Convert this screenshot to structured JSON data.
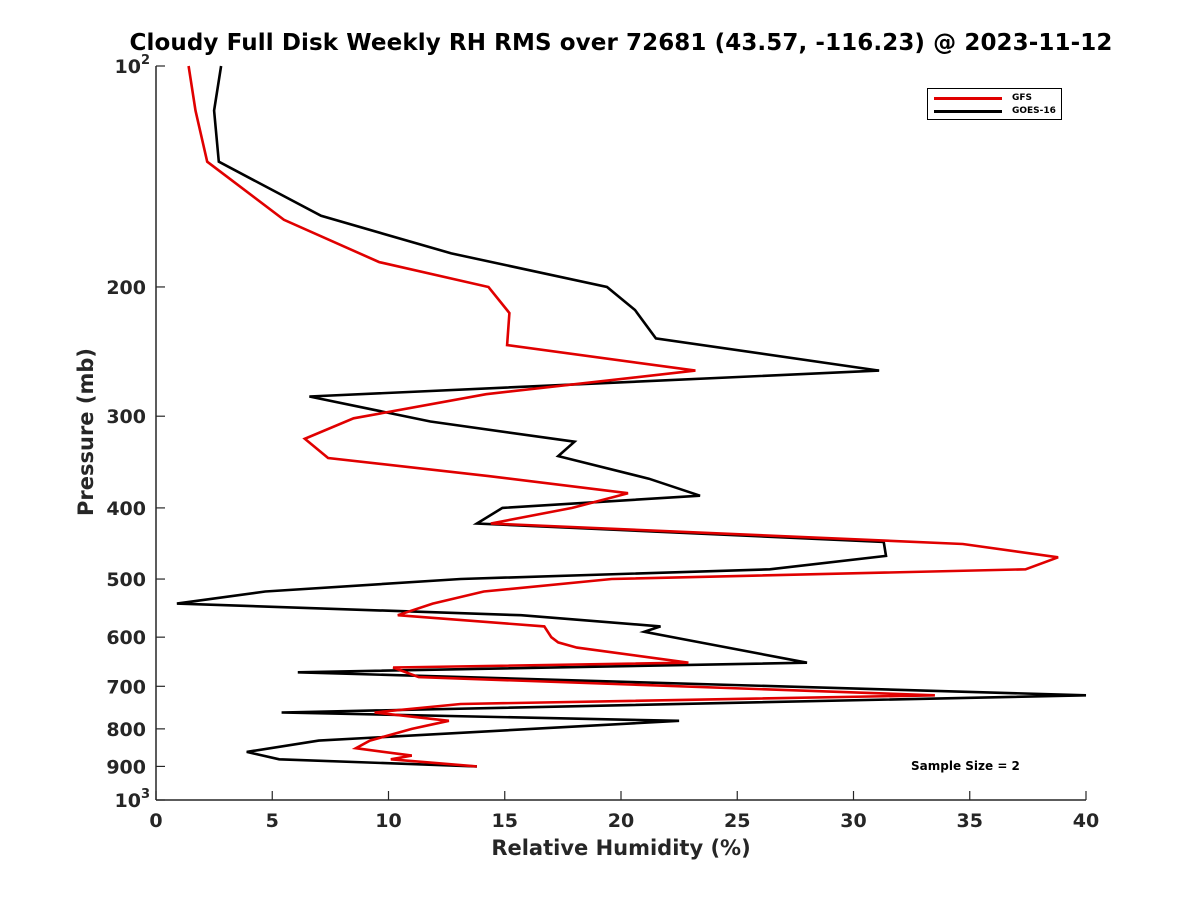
{
  "chart_data": {
    "type": "line",
    "title": "Cloudy Full Disk Weekly RH RMS over 72681 (43.57, -116.23) @ 2023-11-12",
    "xlabel": "Relative Humidity (%)",
    "ylabel": "Pressure (mb)",
    "xlim": [
      0,
      40
    ],
    "ylim": [
      100,
      1000
    ],
    "y_scale": "log",
    "y_reversed": true,
    "x_ticks": [
      {
        "value": 0,
        "label": "0"
      },
      {
        "value": 5,
        "label": "5"
      },
      {
        "value": 10,
        "label": "10"
      },
      {
        "value": 15,
        "label": "15"
      },
      {
        "value": 20,
        "label": "20"
      },
      {
        "value": 25,
        "label": "25"
      },
      {
        "value": 30,
        "label": "30"
      },
      {
        "value": 35,
        "label": "35"
      },
      {
        "value": 40,
        "label": "40"
      }
    ],
    "y_ticks": [
      {
        "value": 100,
        "label": "10",
        "sup": "2"
      },
      {
        "value": 200,
        "label": "200"
      },
      {
        "value": 300,
        "label": "300"
      },
      {
        "value": 400,
        "label": "400"
      },
      {
        "value": 500,
        "label": "500"
      },
      {
        "value": 600,
        "label": "600"
      },
      {
        "value": 700,
        "label": "700"
      },
      {
        "value": 800,
        "label": "800"
      },
      {
        "value": 900,
        "label": "900"
      },
      {
        "value": 1000,
        "label": "10",
        "sup": "3"
      }
    ],
    "grid": false,
    "legend_position": "top-right",
    "annotation": "Sample Size = 2",
    "series": [
      {
        "name": "GFS",
        "color": "#e00000",
        "points": [
          [
            1.4,
            100
          ],
          [
            1.7,
            115
          ],
          [
            2.2,
            135
          ],
          [
            5.5,
            162
          ],
          [
            9.6,
            185
          ],
          [
            14.3,
            200
          ],
          [
            15.2,
            217
          ],
          [
            15.1,
            240
          ],
          [
            23.2,
            260
          ],
          [
            14.2,
            280
          ],
          [
            8.5,
            302
          ],
          [
            6.4,
            322
          ],
          [
            7.4,
            342
          ],
          [
            14.3,
            362
          ],
          [
            20.3,
            382
          ],
          [
            17.9,
            400
          ],
          [
            14.4,
            420
          ],
          [
            34.7,
            448
          ],
          [
            38.8,
            467
          ],
          [
            37.4,
            485
          ],
          [
            19.6,
            500
          ],
          [
            14.1,
            520
          ],
          [
            11.9,
            540
          ],
          [
            10.4,
            560
          ],
          [
            16.7,
            580
          ],
          [
            17.0,
            600
          ],
          [
            17.3,
            610
          ],
          [
            18.1,
            620
          ],
          [
            22.9,
            650
          ],
          [
            10.2,
            660
          ],
          [
            11.3,
            680
          ],
          [
            33.5,
            720
          ],
          [
            13.1,
            740
          ],
          [
            9.4,
            760
          ],
          [
            12.6,
            780
          ],
          [
            11.0,
            800
          ],
          [
            9.2,
            830
          ],
          [
            8.6,
            850
          ],
          [
            11.0,
            870
          ],
          [
            10.1,
            880
          ],
          [
            13.8,
            900
          ]
        ]
      },
      {
        "name": "GOES-16",
        "color": "#000000",
        "points": [
          [
            2.8,
            100
          ],
          [
            2.5,
            115
          ],
          [
            2.7,
            135
          ],
          [
            7.1,
            160
          ],
          [
            12.7,
            180
          ],
          [
            19.4,
            200
          ],
          [
            20.6,
            215
          ],
          [
            21.5,
            235
          ],
          [
            31.1,
            260
          ],
          [
            6.6,
            282
          ],
          [
            11.8,
            305
          ],
          [
            18.0,
            325
          ],
          [
            17.3,
            340
          ],
          [
            21.2,
            365
          ],
          [
            23.4,
            385
          ],
          [
            14.9,
            400
          ],
          [
            13.8,
            420
          ],
          [
            31.3,
            445
          ],
          [
            31.4,
            465
          ],
          [
            26.4,
            485
          ],
          [
            13.1,
            500
          ],
          [
            4.7,
            520
          ],
          [
            0.9,
            540
          ],
          [
            15.7,
            560
          ],
          [
            21.7,
            580
          ],
          [
            21.0,
            590
          ],
          [
            23.4,
            610
          ],
          [
            28.0,
            650
          ],
          [
            6.1,
            670
          ],
          [
            40.0,
            720
          ],
          [
            5.4,
            760
          ],
          [
            22.5,
            780
          ],
          [
            7.0,
            830
          ],
          [
            3.9,
            860
          ],
          [
            5.3,
            880
          ],
          [
            13.8,
            900
          ]
        ]
      }
    ]
  }
}
